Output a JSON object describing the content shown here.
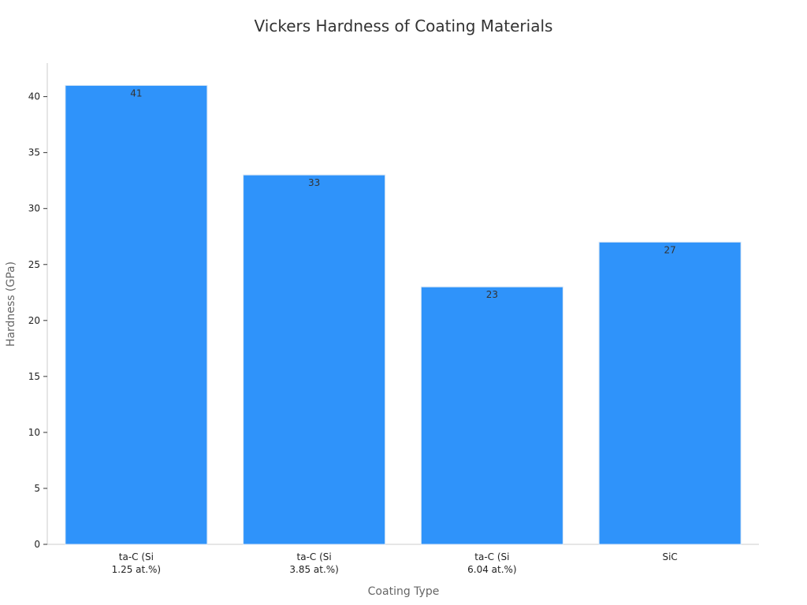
{
  "chart_data": {
    "type": "bar",
    "title": "Vickers Hardness of Coating Materials",
    "xlabel": "Coating Type",
    "ylabel": "Hardness (GPa)",
    "categories": [
      [
        "ta-C (Si",
        "1.25 at.%)"
      ],
      [
        "ta-C (Si",
        "3.85 at.%)"
      ],
      [
        "ta-C (Si",
        "6.04 at.%)"
      ],
      [
        "SiC"
      ]
    ],
    "values": [
      41,
      33,
      23,
      27
    ],
    "ylim": [
      0,
      43
    ],
    "yticks": [
      0,
      5,
      10,
      15,
      20,
      25,
      30,
      35,
      40
    ],
    "bar_color": "#2f93fa",
    "bar_edge_color": "#d8e6f5",
    "grid": false,
    "data_labels": true
  }
}
